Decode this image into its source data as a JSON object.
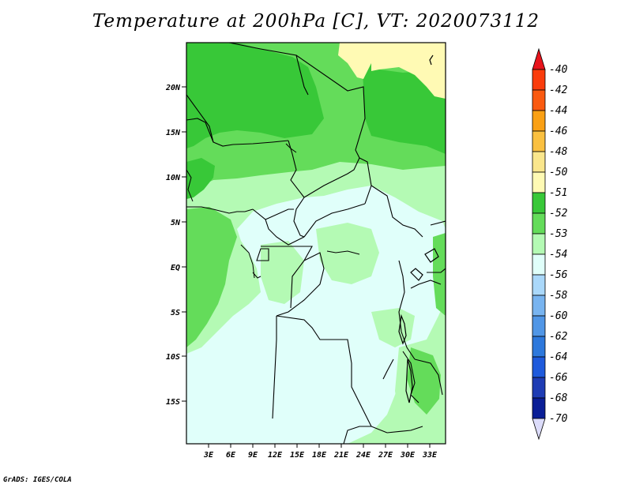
{
  "title": "Temperature at 200hPa [C], VT: 2020073112",
  "credit": "GrADS: IGES/COLA",
  "map": {
    "lon_labels": [
      "3E",
      "6E",
      "9E",
      "12E",
      "15E",
      "18E",
      "21E",
      "24E",
      "27E",
      "30E",
      "33E"
    ],
    "lat_labels": [
      "20N",
      "15N",
      "10N",
      "5N",
      "EQ",
      "5S",
      "10S",
      "15S"
    ]
  },
  "colorbar": {
    "labels": [
      "-40",
      "-42",
      "-44",
      "-46",
      "-48",
      "-50",
      "-51",
      "-52",
      "-53",
      "-54",
      "-56",
      "-58",
      "-60",
      "-62",
      "-64",
      "-66",
      "-68",
      "-70"
    ],
    "colors": {
      "gt_-40": "#e8141c",
      "-42_-40": "#fa3c0c",
      "-44_-42": "#fa5a10",
      "-46_-44": "#faa014",
      "-48_-46": "#fac040",
      "-50_-48": "#fae68c",
      "-51_-50": "#fffab4",
      "-52_-51": "#38c838",
      "-53_-52": "#64dc5a",
      "-54_-53": "#b4fab4",
      "-56_-54": "#e0fffa",
      "-58_-56": "#aad8fa",
      "-60_-58": "#78b4f0",
      "-62_-60": "#5096e6",
      "-64_-62": "#2d78dc",
      "-66_-64": "#1e5adc",
      "-68_-66": "#1e3cb4",
      "-70_-68": "#0a1e96",
      "lt_-70": "#dcdcfa"
    }
  }
}
